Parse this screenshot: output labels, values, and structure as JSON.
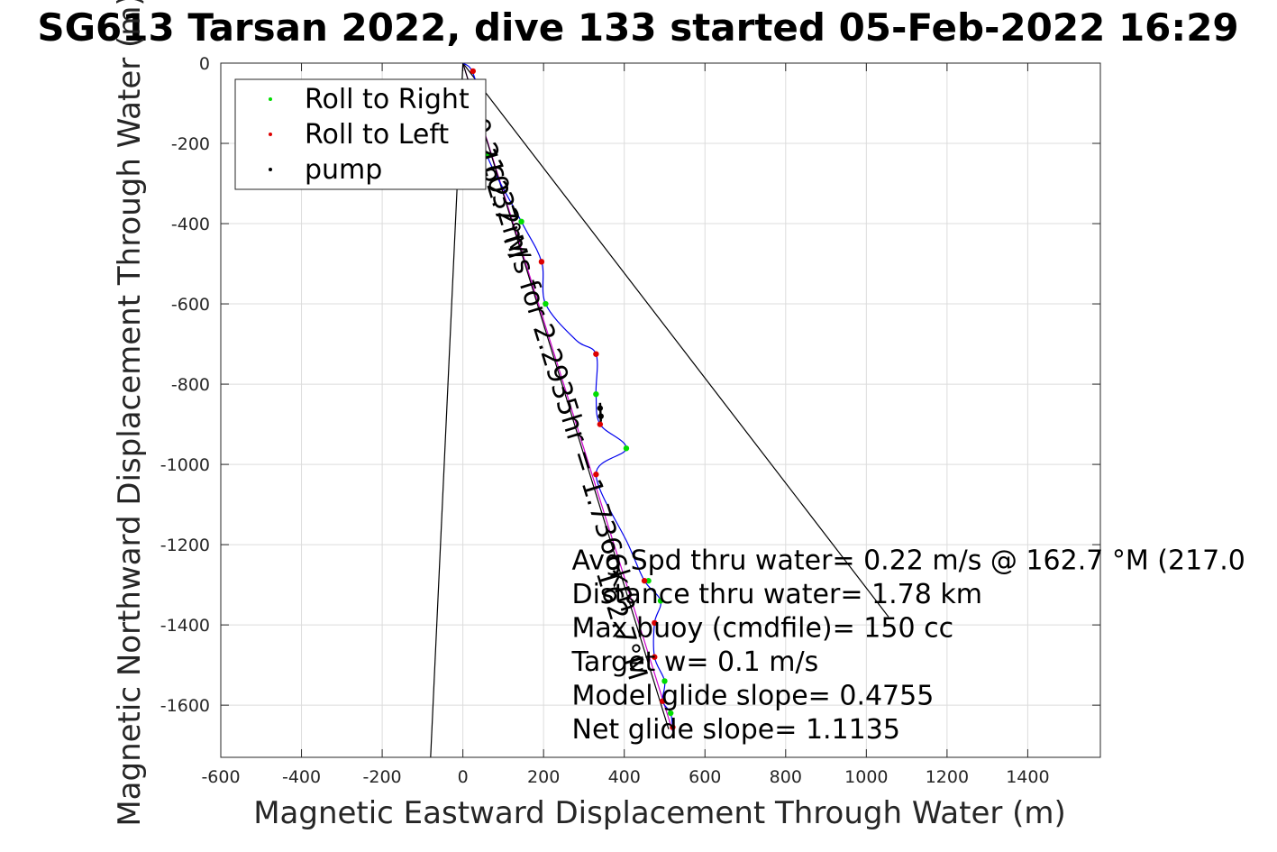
{
  "chart_data": {
    "type": "line",
    "title": "SG613 Tarsan 2022, dive 133 started 05-Feb-2022 16:29",
    "xlabel": "Magnetic Eastward Displacement Through Water (m)",
    "ylabel": "Magnetic Northward Displacement Through Water (m)",
    "xlim": [
      -600,
      1580
    ],
    "ylim": [
      -1730,
      0
    ],
    "xticks": [
      "-600",
      "-400",
      "-200",
      "0",
      "200",
      "400",
      "600",
      "800",
      "1000",
      "1200",
      "1400"
    ],
    "yticks": [
      "0",
      "-200",
      "-400",
      "-600",
      "-800",
      "-1000",
      "-1200",
      "-1400",
      "-1600"
    ],
    "grid": true,
    "legend_position": "top-left",
    "series": [
      {
        "name": "Roll to Right",
        "color": "#00dd00",
        "points": [
          [
            60,
            -230
          ],
          [
            145,
            -395
          ],
          [
            205,
            -600
          ],
          [
            330,
            -825
          ],
          [
            405,
            -960
          ],
          [
            460,
            -1290
          ],
          [
            490,
            -1340
          ],
          [
            500,
            -1540
          ],
          [
            515,
            -1620
          ]
        ]
      },
      {
        "name": "Roll to Left",
        "color": "#dd0000",
        "points": [
          [
            25,
            -20
          ],
          [
            195,
            -495
          ],
          [
            330,
            -725
          ],
          [
            340,
            -900
          ],
          [
            330,
            -1025
          ],
          [
            450,
            -1290
          ],
          [
            475,
            -1395
          ],
          [
            475,
            -1480
          ],
          [
            495,
            -1590
          ],
          [
            520,
            -1655
          ]
        ]
      },
      {
        "name": "pump",
        "color": "#000000",
        "points": [
          [
            340,
            -860
          ],
          [
            342,
            -880
          ]
        ]
      }
    ],
    "track_points": [
      [
        0,
        0
      ],
      [
        25,
        -25
      ],
      [
        55,
        -140
      ],
      [
        60,
        -230
      ],
      [
        145,
        -395
      ],
      [
        195,
        -495
      ],
      [
        205,
        -600
      ],
      [
        280,
        -690
      ],
      [
        330,
        -725
      ],
      [
        330,
        -825
      ],
      [
        340,
        -900
      ],
      [
        405,
        -960
      ],
      [
        330,
        -1025
      ],
      [
        410,
        -1200
      ],
      [
        450,
        -1290
      ],
      [
        490,
        -1340
      ],
      [
        475,
        -1395
      ],
      [
        475,
        -1480
      ],
      [
        500,
        -1540
      ],
      [
        495,
        -1590
      ],
      [
        515,
        -1620
      ],
      [
        520,
        -1665
      ]
    ],
    "lines": [
      {
        "from": [
          0,
          0
        ],
        "to": [
          520,
          -1665
        ],
        "color": "#cc00cc"
      },
      {
        "from": [
          0,
          0
        ],
        "to": [
          510,
          -1660
        ],
        "color": "#000000"
      },
      {
        "from": [
          0,
          0
        ],
        "to": [
          -80,
          -1730
        ],
        "color": "#000000"
      },
      {
        "from": [
          0,
          0
        ],
        "to": [
          1055,
          -1380
        ],
        "color": "#000000"
      }
    ],
    "rotated_labels": [
      {
        "text": "0.21032m/s for 2.2935hr = 1.7366km",
        "at": [
          15,
          -145
        ],
        "angle_deg": 72.7
      },
      {
        "text": "162.7°M",
        "at": [
          33,
          -220
        ],
        "angle_deg": 72.7
      },
      {
        "text": "162.7°M",
        "at": [
          330,
          -1270
        ],
        "angle_deg": 72.7
      }
    ],
    "annotations": [
      "Avg Spd thru water=  0.22 m/s @ 162.7 °M (217.0",
      "Distance thru water=  1.78 km",
      "Max buoy (cmdfile)= 150 cc",
      "Target w= 0.1 m/s",
      "Model glide slope= 0.4755",
      "Net glide slope= 1.1135"
    ],
    "annotation_anchor": [
      270,
      -1262
    ]
  }
}
